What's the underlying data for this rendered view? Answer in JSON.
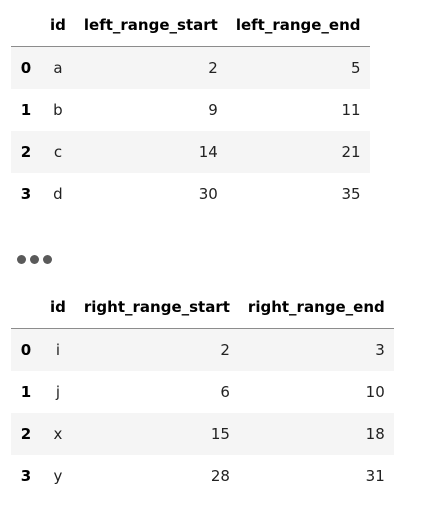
{
  "left_table": {
    "columns": [
      "id",
      "left_range_start",
      "left_range_end"
    ],
    "rows": [
      {
        "index": "0",
        "id": "a",
        "start": "2",
        "end": "5"
      },
      {
        "index": "1",
        "id": "b",
        "start": "9",
        "end": "11"
      },
      {
        "index": "2",
        "id": "c",
        "start": "14",
        "end": "21"
      },
      {
        "index": "3",
        "id": "d",
        "start": "30",
        "end": "35"
      }
    ]
  },
  "right_table": {
    "columns": [
      "id",
      "right_range_start",
      "right_range_end"
    ],
    "rows": [
      {
        "index": "0",
        "id": "i",
        "start": "2",
        "end": "3"
      },
      {
        "index": "1",
        "id": "j",
        "start": "6",
        "end": "10"
      },
      {
        "index": "2",
        "id": "x",
        "start": "15",
        "end": "18"
      },
      {
        "index": "3",
        "id": "y",
        "start": "28",
        "end": "31"
      }
    ]
  },
  "icons": {
    "separator": "ellipsis-icon"
  }
}
